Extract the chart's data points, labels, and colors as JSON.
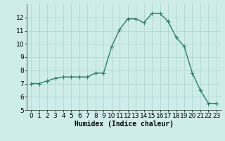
{
  "title": "",
  "xlabel": "Humidex (Indice chaleur)",
  "ylabel": "",
  "x": [
    0,
    1,
    2,
    3,
    4,
    5,
    6,
    7,
    8,
    9,
    10,
    11,
    12,
    13,
    14,
    15,
    16,
    17,
    18,
    19,
    20,
    21,
    22,
    23
  ],
  "y": [
    7.0,
    7.0,
    7.2,
    7.4,
    7.5,
    7.5,
    7.5,
    7.5,
    7.8,
    7.8,
    9.8,
    11.1,
    11.9,
    11.9,
    11.6,
    12.3,
    12.3,
    11.7,
    10.5,
    9.8,
    7.8,
    6.5,
    5.5,
    5.5
  ],
  "xlim": [
    -0.5,
    23.5
  ],
  "ylim": [
    5,
    13
  ],
  "yticks": [
    5,
    6,
    7,
    8,
    9,
    10,
    11,
    12
  ],
  "xticks": [
    0,
    1,
    2,
    3,
    4,
    5,
    6,
    7,
    8,
    9,
    10,
    11,
    12,
    13,
    14,
    15,
    16,
    17,
    18,
    19,
    20,
    21,
    22,
    23
  ],
  "line_color": "#2e7d6e",
  "bg_color": "#ceecea",
  "grid_color": "#b0d8d5",
  "marker": "+",
  "marker_size": 4,
  "line_width": 1.0,
  "xlabel_fontsize": 7,
  "tick_fontsize": 6.5
}
